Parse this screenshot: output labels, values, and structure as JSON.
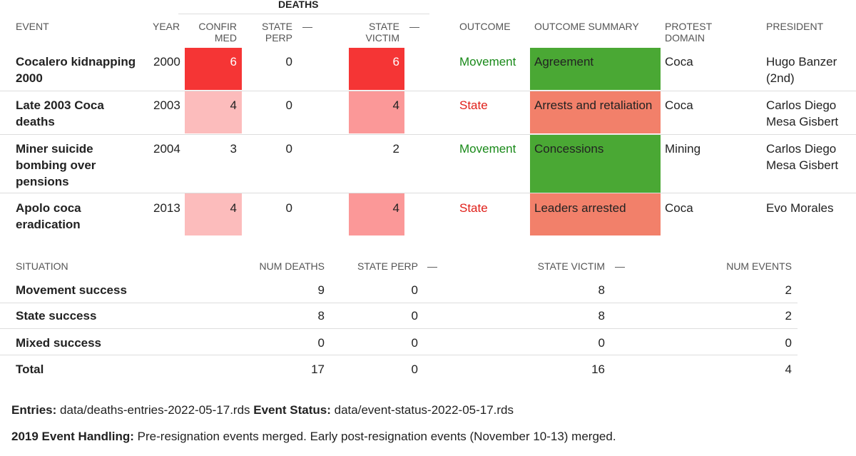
{
  "events_table": {
    "group_header": "DEATHS",
    "columns": {
      "event": "EVENT",
      "year": "YEAR",
      "confirmed": "CONFIR MED",
      "state_perp": "STATE PERP",
      "dash1": "—",
      "state_victim": "STATE VICTIM",
      "dash2": "—",
      "outcome": "OUTCOME",
      "outcome_summary": "OUTCOME SUMMARY",
      "protest_domain": "PROTEST DOMAIN",
      "president": "PRESIDENT"
    },
    "rows": [
      {
        "event": "Cocalero kidnapping 2000",
        "year": "2000",
        "confirmed": "6",
        "state_perp": "0",
        "state_victim": "6",
        "outcome": "Movement",
        "outcome_summary": "Agreement",
        "protest_domain": "Coca",
        "president": "Hugo Banzer (2nd)",
        "confirmed_color": "#f53535",
        "victim_color": "#f53535",
        "summary_color": "#4aa834"
      },
      {
        "event": "Late 2003 Coca deaths",
        "year": "2003",
        "confirmed": "4",
        "state_perp": "0",
        "state_victim": "4",
        "outcome": "State",
        "outcome_summary": "Arrests and retaliation",
        "protest_domain": "Coca",
        "president": "Carlos Diego Mesa Gisbert",
        "confirmed_color": "#fcbcbc",
        "victim_color": "#fb9898",
        "summary_color": "#f2806a"
      },
      {
        "event": "Miner suicide bombing over pensions",
        "year": "2004",
        "confirmed": "3",
        "state_perp": "0",
        "state_victim": "2",
        "outcome": "Movement",
        "outcome_summary": "Concessions",
        "protest_domain": "Mining",
        "president": "Carlos Diego Mesa Gisbert",
        "confirmed_color": "",
        "victim_color": "",
        "summary_color": "#4aa834"
      },
      {
        "event": "Apolo coca eradication",
        "year": "2013",
        "confirmed": "4",
        "state_perp": "0",
        "state_victim": "4",
        "outcome": "State",
        "outcome_summary": "Leaders arrested",
        "protest_domain": "Coca",
        "president": "Evo Morales",
        "confirmed_color": "#fcbcbc",
        "victim_color": "#fb9898",
        "summary_color": "#f2806a"
      }
    ]
  },
  "summary_table": {
    "columns": {
      "situation": "SITUATION",
      "num_deaths": "NUM DEATHS",
      "state_perp": "STATE PERP",
      "dash1": "—",
      "state_victim": "STATE VICTIM",
      "dash2": "—",
      "num_events": "NUM EVENTS"
    },
    "rows": [
      {
        "situation": "Movement success",
        "num_deaths": "9",
        "state_perp": "0",
        "state_victim": "8",
        "num_events": "2"
      },
      {
        "situation": "State success",
        "num_deaths": "8",
        "state_perp": "0",
        "state_victim": "8",
        "num_events": "2"
      },
      {
        "situation": "Mixed success",
        "num_deaths": "0",
        "state_perp": "0",
        "state_victim": "0",
        "num_events": "0"
      },
      {
        "situation": "Total",
        "num_deaths": "17",
        "state_perp": "0",
        "state_victim": "16",
        "num_events": "4"
      }
    ]
  },
  "footer": {
    "entries_label": "Entries:",
    "entries_value": "data/deaths-entries-2022-05-17.rds",
    "status_label": "Event Status:",
    "status_value": "data/event-status-2022-05-17.rds",
    "handling_label": "2019 Event Handling:",
    "handling_value": "Pre-resignation events merged. Early post-resignation events (November 10-13) merged."
  }
}
